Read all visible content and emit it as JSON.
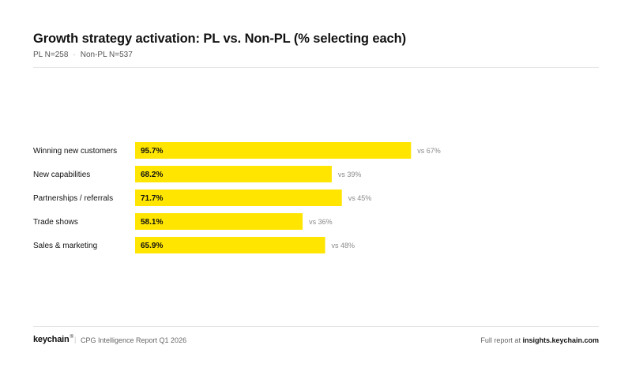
{
  "header": {
    "title": "Growth strategy activation: PL vs. Non-PL (% selecting each)",
    "sample_pl": "PL N=258",
    "sample_sep": "·",
    "sample_nonpl": "Non-PL N=537"
  },
  "colors": {
    "bar": "#ffe500",
    "text": "#111111",
    "muted": "#8a8a8a"
  },
  "chart_data": {
    "type": "bar",
    "orientation": "horizontal",
    "categories": [
      "Winning new customers",
      "New capabilities",
      "Partnerships / referrals",
      "Trade shows",
      "Sales & marketing"
    ],
    "series": [
      {
        "name": "PL",
        "values": [
          95.7,
          68.2,
          71.7,
          58.1,
          65.9
        ],
        "labels": [
          "95.7%",
          "68.2%",
          "71.7%",
          "58.1%",
          "65.9%"
        ]
      },
      {
        "name": "Non-PL",
        "values": [
          67,
          39,
          45,
          36,
          48
        ],
        "labels": [
          "vs 67%",
          "vs 39%",
          "vs 45%",
          "vs 36%",
          "vs 48%"
        ]
      }
    ],
    "xlim": [
      0,
      100
    ],
    "grid": false,
    "legend": "none"
  },
  "footer": {
    "brand": "keychain",
    "brand_mark": "®",
    "separator": "|",
    "report": "CPG Intelligence Report Q1 2026",
    "full_report_prefix": "Full report at",
    "full_report_link": "insights.keychain.com"
  }
}
